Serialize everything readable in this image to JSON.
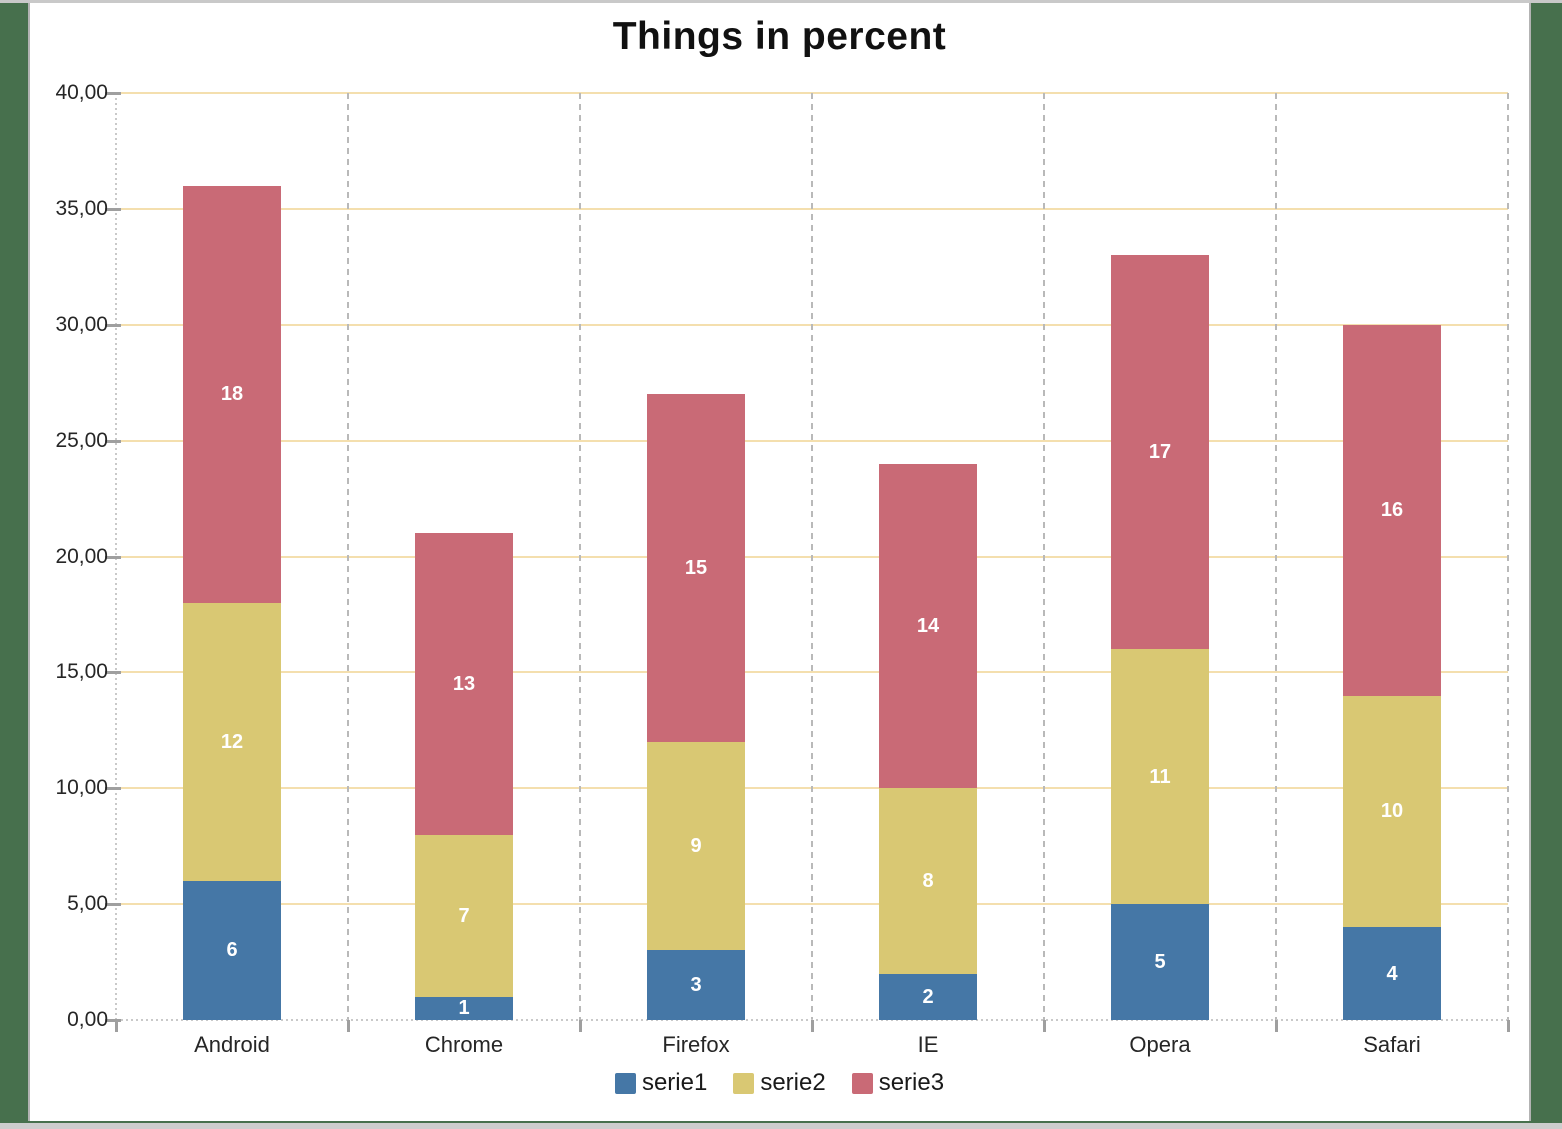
{
  "title": "Things in percent",
  "chart_data": {
    "type": "bar",
    "stacked": true,
    "title": "Things in percent",
    "categories": [
      "Android",
      "Chrome",
      "Firefox",
      "IE",
      "Opera",
      "Safari"
    ],
    "series": [
      {
        "name": "serie1",
        "color": "#4577a6",
        "values": [
          6,
          1,
          3,
          2,
          5,
          4
        ]
      },
      {
        "name": "serie2",
        "color": "#d9c873",
        "values": [
          12,
          7,
          9,
          8,
          11,
          10
        ]
      },
      {
        "name": "serie3",
        "color": "#c96a76",
        "values": [
          18,
          13,
          15,
          14,
          17,
          16
        ]
      }
    ],
    "totals": [
      36,
      21,
      27,
      24,
      33,
      30
    ],
    "xlabel": "",
    "ylabel": "",
    "ylim": [
      0,
      40
    ],
    "ytick_step": 5,
    "ytick_labels": [
      "0,00",
      "5,00",
      "10,00",
      "15,00",
      "20,00",
      "25,00",
      "30,00",
      "35,00",
      "40,00"
    ],
    "grid": {
      "horizontal": true,
      "vertical_category_separators": true
    },
    "legend_position": "bottom-center",
    "data_labels": {
      "show": true,
      "color": "#ffffff"
    }
  },
  "colors": {
    "desktop_background": "#47704d",
    "canvas_background": "#ffffff",
    "canvas_border": "#b3b3b3",
    "edge_strip_top": "#c9c9c9",
    "edge_strip_bottom": "#cdcdcd",
    "h_gridline": "#f4dfae",
    "v_gridline": "#b9b9b9",
    "axis_line": "#c9c9c9",
    "tick": "#9f9f9f",
    "text": "#262626"
  }
}
